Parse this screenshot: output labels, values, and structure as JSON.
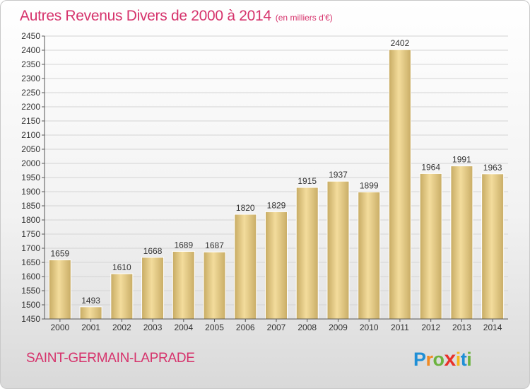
{
  "chart_data": {
    "type": "bar",
    "title": "Autres Revenus Divers de 2000 à 2014",
    "subtitle": "(en milliers d'€)",
    "categories": [
      "2000",
      "2001",
      "2002",
      "2003",
      "2004",
      "2005",
      "2006",
      "2007",
      "2008",
      "2009",
      "2010",
      "2011",
      "2012",
      "2013",
      "2014"
    ],
    "values": [
      1659,
      1493,
      1610,
      1668,
      1689,
      1687,
      1820,
      1829,
      1915,
      1937,
      1899,
      2402,
      1964,
      1991,
      1963
    ],
    "ylim": [
      1450,
      2450
    ],
    "ytick_step": 50,
    "grid": true,
    "bar_color": "#e6c87a",
    "legend": "none"
  },
  "footer": {
    "town": "SAINT-GERMAIN-LAPRADE"
  },
  "brand": {
    "letters": [
      "P",
      "r",
      "o",
      "x",
      "i",
      "t",
      "i"
    ],
    "colors": [
      "#1f8fd6",
      "#f08a24",
      "#6cb33f",
      "#e8312a",
      "#f5b719",
      "#1f8fd6",
      "#6cb33f"
    ]
  },
  "colors": {
    "title": "#d6336c",
    "grid": "#d4d4d4",
    "axis": "#555555"
  }
}
